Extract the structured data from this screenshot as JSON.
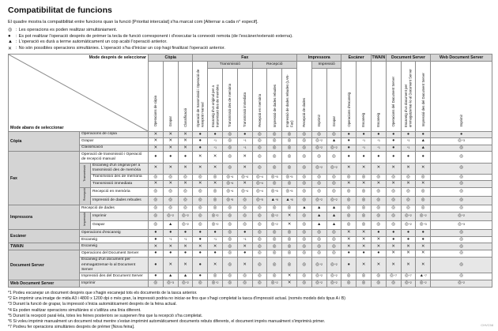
{
  "title": "Compatibilitat de funcions",
  "intro": "El quadre mostra la compatibilitat entre funcions quan la funció [Prioritat intercalat] s'ha marcat com [Alternar a cada n° especif].",
  "legend": [
    {
      "symbol": "◎",
      "sep": ":",
      "text": "Les operacions es poden realitzar simultàniament."
    },
    {
      "symbol": "●",
      "sep": ":",
      "text": "Es pot realitzar l'operació després de prémer la tecla de funció corresponent i d'executar la connexió remota (de l'escàner/extensió externa)."
    },
    {
      "symbol": "▲",
      "sep": ":",
      "text": "L'operació es durà a terme automàticament un cop acabi l'operació anterior."
    },
    {
      "symbol": "✕",
      "sep": ":",
      "text": "No són possibles operacions simultànies. L'operació s'ha d'iniciar un cop hagi finalitzat l'operació anterior."
    }
  ],
  "table": {
    "corner": {
      "after": "Mode després de seleccionar",
      "before": "Mode abans de seleccionar"
    },
    "groups": [
      {
        "label": "Còpia",
        "cols": [
          0,
          1,
          2
        ],
        "subs": []
      },
      {
        "label": "Fax",
        "cols": [
          3,
          4,
          5,
          6,
          7,
          8,
          9
        ],
        "subs": [
          {
            "label": "Transmissió",
            "cols": [
              4,
              5,
              6
            ]
          },
          {
            "label": "Recepció",
            "cols": [
              7,
              8,
              9
            ]
          }
        ]
      },
      {
        "label": "Impressora",
        "cols": [
          10,
          11,
          12
        ],
        "subs": [
          {
            "label": "Impressió",
            "cols": [
              11,
              12
            ]
          }
        ]
      },
      {
        "label": "Escàner",
        "cols": [
          13,
          14
        ],
        "subs": []
      },
      {
        "label": "TWAIN",
        "cols": [
          15
        ],
        "subs": []
      },
      {
        "label": "Document Server",
        "cols": [
          16,
          17,
          18
        ],
        "subs": []
      },
      {
        "label": "Web Document Server",
        "cols": [
          19
        ],
        "subs": []
      }
    ],
    "columns": [
      "Operacions de còpia",
      "Grapar",
      "Classificació",
      "Operació de transmissió i Operació de recepció manual",
      "Escaneig d'un original per a transmissió des de memòria",
      "Transmissió des de memòria",
      "Transmissió immediata",
      "Recepció en memòria",
      "Impressió de dades rebudes",
      "Impressió de dades rebudes (LAN-Fax)",
      "Recepció de dades",
      "Imprimir",
      "Grapar",
      "Operacions d'escaneig",
      "Escaneig",
      "Escaneig",
      "Operacions del Document Server",
      "Escaneig d'un document per emmagatzemar-lo al Document Server",
      "Impressió des del Document Server",
      "Imprimir"
    ],
    "row_groups": [
      {
        "label": "Còpia",
        "rows": [
          0,
          1,
          2
        ],
        "subs": []
      },
      {
        "label": "Fax",
        "rows": [
          3,
          4,
          5,
          6,
          7,
          8
        ],
        "subs": [
          {
            "label": "Transmissió",
            "rows": [
              4,
              5,
              6
            ]
          },
          {
            "label": "Recepció",
            "rows": [
              7,
              8
            ]
          }
        ]
      },
      {
        "label": "Impressora",
        "rows": [
          9,
          10,
          11
        ],
        "subs": [
          {
            "label": "Impressió",
            "rows": [
              10,
              11
            ]
          }
        ]
      },
      {
        "label": "Escàner",
        "rows": [
          12,
          13
        ],
        "subs": []
      },
      {
        "label": "TWAIN",
        "rows": [
          14
        ],
        "subs": []
      },
      {
        "label": "Document Server",
        "rows": [
          15,
          16,
          17
        ],
        "subs": []
      },
      {
        "label": "Web Document Server",
        "rows": [
          18
        ],
        "subs": []
      }
    ],
    "rows": [
      {
        "label": "Operacions de còpia",
        "cells": [
          "✕",
          "✕",
          "✕",
          "●",
          "●",
          "◎",
          "●",
          "◎",
          "◎",
          "◎",
          "◎",
          "◎",
          "◎",
          "●",
          "●",
          "●",
          "●",
          "●",
          "●",
          "●"
        ]
      },
      {
        "label": "Grapar",
        "cells": [
          "✕",
          "✕",
          "✕",
          "●",
          "*1",
          "◎",
          "*1",
          "◎",
          "◎",
          "◎",
          "◎",
          "◎*2",
          "▲",
          "●",
          "*1",
          "*1",
          "●",
          "*1",
          "▲",
          "◎*3"
        ]
      },
      {
        "label": "Classificació",
        "cells": [
          "✕",
          "✕",
          "✕",
          "●",
          "*1",
          "◎",
          "*1",
          "◎",
          "◎",
          "◎",
          "◎",
          "◎*2",
          "◎*2",
          "●",
          "*1",
          "*1",
          "●",
          "*1",
          "▲",
          "◎"
        ]
      },
      {
        "label": "Operació de transmissió i Operació de recepció manual",
        "cells": [
          "●",
          "●",
          "●",
          "✕",
          "✕",
          "◎",
          "✕",
          "◎",
          "◎",
          "◎",
          "◎",
          "◎",
          "◎",
          "●",
          "●",
          "●",
          "●",
          "●",
          "●",
          "◎"
        ]
      },
      {
        "label": "Escaneig d'un original per a transmissió des de memòria",
        "cells": [
          "✕",
          "✕",
          "✕",
          "✕",
          "✕",
          "◎",
          "✕",
          "◎",
          "◎",
          "◎",
          "◎",
          "◎*2",
          "◎*2",
          "✕",
          "✕",
          "✕",
          "✕",
          "✕",
          "✕",
          "◎"
        ]
      },
      {
        "label": "Transmissió des de memòria",
        "cells": [
          "◎",
          "◎",
          "◎",
          "◎",
          "◎",
          "◎*4",
          "◎*4",
          "◎*4",
          "◎*5",
          "◎*5",
          "◎",
          "◎",
          "◎",
          "◎",
          "◎",
          "◎",
          "◎",
          "◎",
          "◎",
          "◎"
        ]
      },
      {
        "label": "Transmissió immediata",
        "cells": [
          "✕",
          "✕",
          "✕",
          "✕",
          "✕",
          "◎*4",
          "✕",
          "◎*4",
          "◎",
          "◎",
          "◎",
          "◎",
          "◎",
          "✕",
          "✕",
          "✕",
          "✕",
          "✕",
          "✕",
          "◎"
        ]
      },
      {
        "label": "Recepció en memòria",
        "cells": [
          "◎",
          "◎",
          "◎",
          "◎",
          "◎",
          "◎*4",
          "◎*4",
          "◎*4",
          "◎*5",
          "◎*5",
          "◎",
          "◎",
          "◎",
          "◎",
          "◎",
          "◎",
          "◎",
          "◎",
          "◎",
          "◎"
        ]
      },
      {
        "label": "Impressió de dades rebudes",
        "cells": [
          "◎",
          "◎",
          "◎",
          "◎",
          "◎",
          "◎*5",
          "◎",
          "◎*5",
          "▲*6",
          "▲*6",
          "◎",
          "◎*2",
          "◎*2",
          "◎",
          "◎",
          "◎",
          "◎",
          "◎",
          "◎",
          "◎"
        ]
      },
      {
        "label": "Recepció de dades",
        "cells": [
          "◎",
          "◎",
          "◎",
          "◎",
          "◎",
          "◎",
          "◎",
          "◎",
          "◎",
          "◎",
          "▲",
          "▲",
          "▲",
          "◎",
          "◎",
          "◎",
          "◎",
          "◎",
          "◎",
          "◎"
        ]
      },
      {
        "label": "Imprimir",
        "cells": [
          "◎",
          "◎*2",
          "◎*2",
          "◎",
          "◎*2",
          "◎",
          "◎",
          "◎",
          "◎*2",
          "✕",
          "◎",
          "▲",
          "▲",
          "◎",
          "◎",
          "◎",
          "◎",
          "◎*2",
          "◎*2",
          "◎*2"
        ]
      },
      {
        "label": "Grapar",
        "cells": [
          "◎",
          "▲",
          "◎*2",
          "◎",
          "◎*2",
          "◎",
          "◎",
          "◎",
          "◎*2",
          "✕",
          "◎",
          "▲",
          "▲",
          "◎",
          "◎",
          "◎",
          "◎",
          "◎*2",
          "◎*3",
          "◎*3"
        ]
      },
      {
        "label": "Operacions d'escaneig",
        "cells": [
          "●",
          "●",
          "●",
          "●",
          "●",
          "◎",
          "●",
          "◎",
          "◎",
          "◎",
          "◎",
          "◎",
          "◎",
          "✕",
          "✕",
          "●",
          "●",
          "●",
          "●",
          "◎"
        ]
      },
      {
        "label": "Escaneig",
        "cells": [
          "●",
          "*1",
          "*1",
          "●",
          "*1",
          "◎",
          "*1",
          "◎",
          "◎",
          "◎",
          "◎",
          "◎",
          "◎",
          "✕",
          "✕",
          "✕",
          "●",
          "●",
          "●",
          "◎"
        ]
      },
      {
        "label": "Escaneig",
        "cells": [
          "✕",
          "✕",
          "✕",
          "✕",
          "✕",
          "◎",
          "✕",
          "◎",
          "◎",
          "◎",
          "◎",
          "◎",
          "◎",
          "✕",
          "✕",
          "✕",
          "✕",
          "✕",
          "✕",
          "◎"
        ]
      },
      {
        "label": "Operacions del Document Server",
        "cells": [
          "●",
          "●",
          "●",
          "●",
          "●",
          "◎",
          "●",
          "◎",
          "◎",
          "◎",
          "◎",
          "◎",
          "◎",
          "●",
          "●",
          "●",
          "✕",
          "✕",
          "✕",
          "◎"
        ]
      },
      {
        "label": "Escaneig d'un document per emmagatzemar-lo al Document Server",
        "cells": [
          "●",
          "✕",
          "✕",
          "●",
          "✕",
          "◎",
          "✕",
          "◎",
          "◎",
          "◎",
          "◎",
          "◎*2",
          "◎*2",
          "●",
          "✕",
          "✕",
          "✕",
          "✕",
          "✕",
          "◎"
        ]
      },
      {
        "label": "Impressió des del Document Server",
        "cells": [
          "●",
          "▲",
          "▲",
          "●",
          "◎",
          "◎",
          "◎",
          "◎",
          "◎",
          "✕",
          "◎",
          "◎*2",
          "◎*2",
          "◎",
          "◎",
          "◎",
          "◎*7",
          "◎*7",
          "▲*7",
          "◎"
        ]
      },
      {
        "label": "Imprimir",
        "cells": [
          "◎",
          "◎*3",
          "◎*2",
          "◎",
          "◎*2",
          "◎",
          "◎",
          "◎",
          "◎*2",
          "✕",
          "◎",
          "◎*2",
          "◎*2",
          "◎",
          "◎",
          "◎",
          "◎",
          "◎*2",
          "◎*2",
          "◎*2"
        ]
      }
    ]
  },
  "footnotes": [
    "*1 Podeu escanejar un document després que s'hagin escanejat tots els documents de la tasca anterior.",
    "*2 En imprimir una imatge de mida A3 i 4800 x 1200 dpi o més gran, la impressió podria no iniciar-se fins que s'hagi completat la tasca d'impressió actual. (només models dels tipus A i B)",
    "*3 Durant la funció de grapar, la impressió s'inicia automàticament després de la feina actual.",
    "*4 Es poden realitzar operacions simultànies si s'utilitza una línia diferent.",
    "*5 Durant la recepció paral·lela, totes les feines posteriors se suspenen fins que la recepció s'ha completat.",
    "*6 Si voleu imprimir manualment un document rebut mentre s'estan imprimint automàticament documents rebuts diferents, el document imprès manualment s'imprimirà primer.",
    "*7 Podreu fer operacions simultànies després de prémer [Nova feina].",
    "CHVC58"
  ],
  "colors": {
    "header_bg": "#d4d4d4",
    "row_shade": "#e7e7e7",
    "border": "#8c8c8c"
  }
}
